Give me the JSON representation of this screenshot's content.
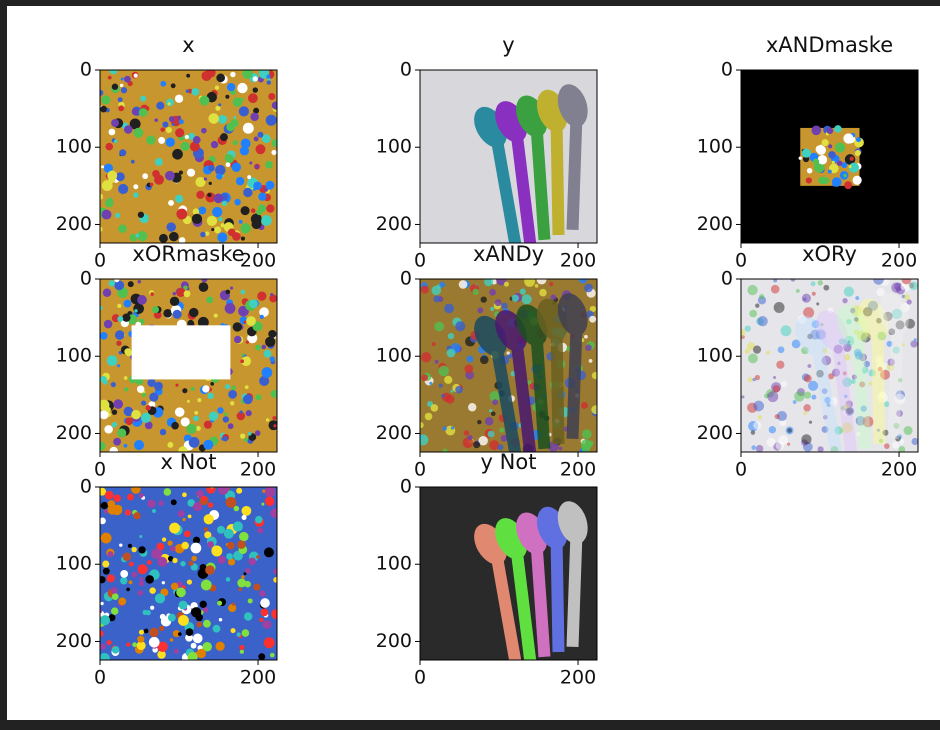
{
  "chart_data": [
    {
      "type": "image",
      "title": "x",
      "color": "#c8962e",
      "xlim": [
        0,
        224
      ],
      "ylim": [
        0,
        224
      ],
      "xticks": [
        0,
        200
      ],
      "yticks": [
        0,
        100,
        200
      ]
    },
    {
      "type": "image",
      "title": "y",
      "color": "#d8d8dc",
      "xlim": [
        0,
        224
      ],
      "ylim": [
        0,
        224
      ],
      "xticks": [
        0,
        200
      ],
      "yticks": [
        0,
        100,
        200
      ]
    },
    {
      "type": "image",
      "title": "xANDmaske",
      "color": "#000000",
      "xlim": [
        0,
        224
      ],
      "ylim": [
        0,
        224
      ],
      "xticks": [
        0,
        200
      ],
      "yticks": [
        0,
        100,
        200
      ]
    },
    {
      "type": "image",
      "title": "xORmaske",
      "color": "#c8962e",
      "xlim": [
        0,
        224
      ],
      "ylim": [
        0,
        224
      ],
      "xticks": [
        0,
        200
      ],
      "yticks": [
        0,
        100,
        200
      ]
    },
    {
      "type": "image",
      "title": "xANDy",
      "color": "#9a7a30",
      "xlim": [
        0,
        224
      ],
      "ylim": [
        0,
        224
      ],
      "xticks": [
        0,
        200
      ],
      "yticks": [
        0,
        100,
        200
      ]
    },
    {
      "type": "image",
      "title": "xORy",
      "color": "#e6e6ea",
      "xlim": [
        0,
        224
      ],
      "ylim": [
        0,
        224
      ],
      "xticks": [
        0,
        200
      ],
      "yticks": [
        0,
        100,
        200
      ]
    },
    {
      "type": "image",
      "title": "x Not",
      "color": "#3a62c8",
      "xlim": [
        0,
        224
      ],
      "ylim": [
        0,
        224
      ],
      "xticks": [
        0,
        200
      ],
      "yticks": [
        0,
        100,
        200
      ]
    },
    {
      "type": "image",
      "title": "y Not",
      "color": "#2a2a2a",
      "xlim": [
        0,
        224
      ],
      "ylim": [
        0,
        224
      ],
      "xticks": [
        0,
        200
      ],
      "yticks": [
        0,
        100,
        200
      ]
    }
  ]
}
